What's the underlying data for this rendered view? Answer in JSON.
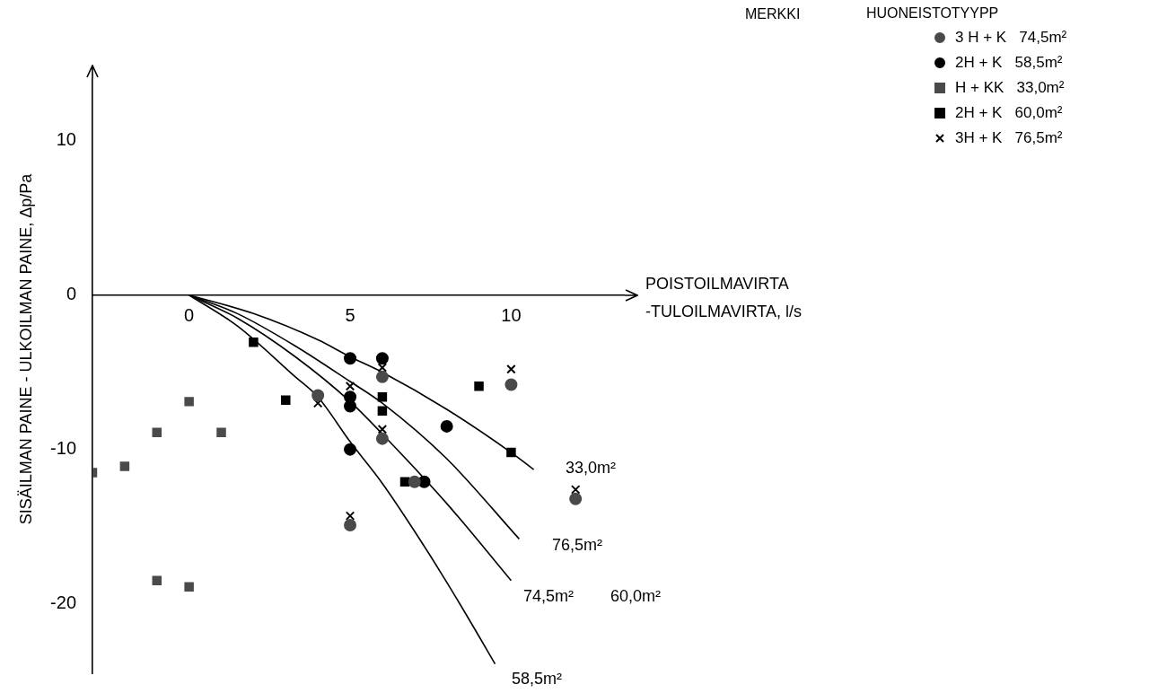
{
  "chart_data": {
    "type": "scatter",
    "xlabel": "POISTOILMAVIRTA\n-TULOILMAVIRTA, l/s",
    "ylabel": "SISÄILMAN PAINE - ULKOILMAN PAINE, Δp/Pa",
    "legend_title": "MERKKI",
    "legend": "top right",
    "grid": false,
    "xlim": [
      -3,
      13.5
    ],
    "xticks": [
      0,
      5,
      10
    ],
    "ylim": [
      -24.5,
      14
    ],
    "yticks": [
      -20,
      -10,
      0,
      10
    ],
    "series": [
      {
        "name": "3 H + K   74,5m²",
        "color": "#4a4a4a",
        "marker": "circle",
        "x": [
          4,
          6,
          6,
          5,
          10,
          7,
          12
        ],
        "values": [
          -6.5,
          -5.3,
          -9.3,
          -14.9,
          -5.8,
          -12.1,
          -13.2
        ]
      },
      {
        "name": "2H + K   58,5m²",
        "color": "#000000",
        "marker": "circle",
        "x": [
          5,
          6,
          5,
          5,
          8,
          5,
          7.3
        ],
        "values": [
          -4.1,
          -4.1,
          -6.6,
          -7.2,
          -8.5,
          -10.0,
          -12.1
        ]
      },
      {
        "name": "H + KK   33,0m²",
        "color": "#4a4a4a",
        "marker": "square",
        "x": [
          -3,
          -2,
          -1,
          0,
          1,
          -1,
          0
        ],
        "values": [
          -11.5,
          -11.1,
          -8.9,
          -6.9,
          -8.9,
          -18.5,
          -18.9
        ]
      },
      {
        "name": "2H + K   60,0m²",
        "color": "#000000",
        "marker": "square",
        "x": [
          2,
          3,
          6,
          6,
          9,
          10,
          6.7
        ],
        "values": [
          -3.05,
          -6.8,
          -6.6,
          -7.5,
          -5.9,
          -10.2,
          -12.1
        ]
      },
      {
        "name": "3H + K   76,5m²",
        "color": "#000000",
        "marker": "cross",
        "x": [
          4,
          5,
          6,
          6,
          5,
          10,
          12
        ],
        "values": [
          -7.0,
          -5.9,
          -4.7,
          -8.7,
          -14.3,
          -4.8,
          -12.6
        ]
      },
      {
        "type": "line",
        "color": "#000000",
        "marker": "none",
        "x": [
          0,
          2,
          4,
          5,
          6,
          8,
          10,
          10.7
        ],
        "values": [
          0,
          -1.2,
          -2.9,
          -4.0,
          -5.0,
          -7.4,
          -10.2,
          -11.3
        ]
      },
      {
        "type": "line",
        "color": "#000000",
        "marker": "none",
        "x": [
          0,
          1.5,
          3.3,
          5,
          6,
          8,
          10.25
        ],
        "values": [
          0,
          -1.2,
          -3.3,
          -5.6,
          -7.0,
          -10.6,
          -15.8
        ]
      },
      {
        "type": "line",
        "color": "#000000",
        "marker": "none",
        "x": [
          0,
          1.5,
          3.3,
          5,
          6,
          8,
          10
        ],
        "values": [
          0,
          -1.5,
          -4.0,
          -6.9,
          -9.0,
          -13.5,
          -18.5
        ]
      },
      {
        "type": "line",
        "color": "#000000",
        "marker": "none",
        "x": [
          0,
          1.5,
          3.3,
          4,
          5,
          6,
          7,
          8,
          9,
          9.5
        ],
        "values": [
          0,
          -2.0,
          -5.3,
          -6.6,
          -9.5,
          -12.2,
          -15.3,
          -18.6,
          -22.1,
          -23.9
        ]
      }
    ],
    "annotations": [
      "HUONEISTOTYYPP",
      "33,0m²",
      "76,5m²",
      "74,5m²",
      "60,0m²",
      "58,5m²"
    ]
  }
}
